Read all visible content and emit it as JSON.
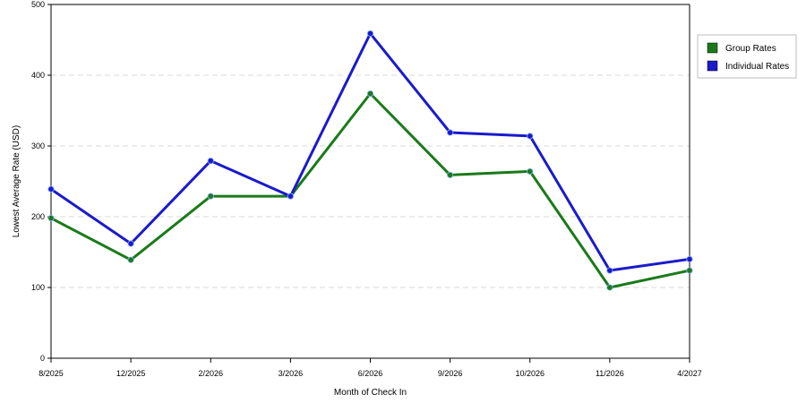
{
  "chart_data": {
    "type": "line",
    "categories": [
      "8/2025",
      "12/2025",
      "2/2026",
      "3/2026",
      "6/2026",
      "9/2026",
      "10/2026",
      "11/2026",
      "4/2027"
    ],
    "series": [
      {
        "name": "Group Rates",
        "color": "#1a7a1a",
        "values": [
          198,
          139,
          229,
          229,
          374,
          259,
          264,
          100,
          124
        ]
      },
      {
        "name": "Individual Rates",
        "color": "#1a1acc",
        "values": [
          239,
          162,
          279,
          229,
          459,
          319,
          314,
          124,
          140
        ]
      }
    ],
    "xlabel": "Month of Check In",
    "ylabel": "Lowest Average Rate (USD)",
    "ylim": [
      0,
      500
    ],
    "yticks": [
      0,
      100,
      200,
      300,
      400,
      500
    ],
    "grid": true,
    "legend_position": "right"
  }
}
